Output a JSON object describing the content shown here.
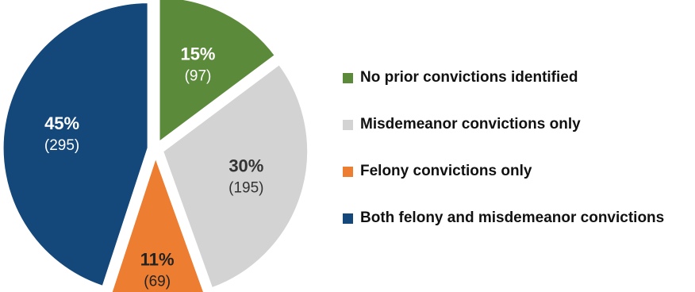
{
  "chart_data": {
    "type": "pie",
    "title": "",
    "legend_position": "right",
    "slices": [
      {
        "name": "No prior convictions identified",
        "percent_label": "15%",
        "count_label": "(97)",
        "value": 97,
        "color": "#5b8a3a",
        "text_color": "#ffffff"
      },
      {
        "name": "Misdemeanor convictions only",
        "percent_label": "30%",
        "count_label": "(195)",
        "value": 195,
        "color": "#d3d3d3",
        "text_color": "#333333"
      },
      {
        "name": "Felony convictions only",
        "percent_label": "11%",
        "count_label": "(69)",
        "value": 69,
        "color": "#ed7d31",
        "text_color": "#222222"
      },
      {
        "name": "Both felony and misdemeanor convictions",
        "percent_label": "45%",
        "count_label": "(295)",
        "value": 295,
        "color": "#14477a",
        "text_color": "#ffffff"
      }
    ]
  }
}
